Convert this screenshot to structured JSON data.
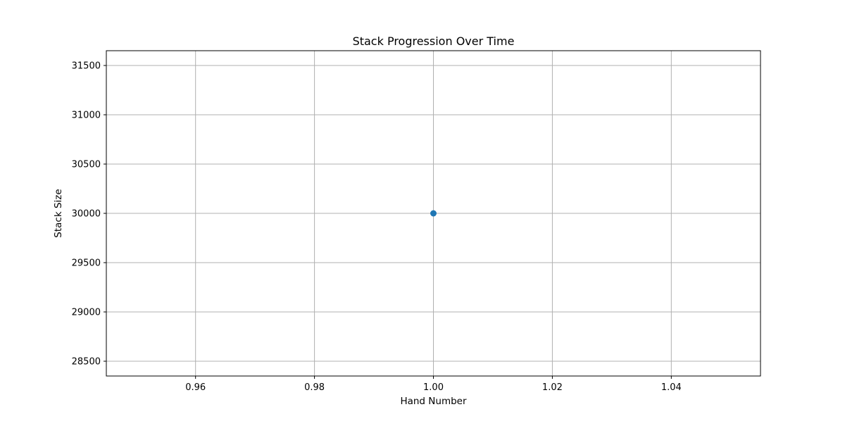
{
  "chart_data": {
    "type": "line",
    "title": "Stack Progression Over Time",
    "xlabel": "Hand Number",
    "ylabel": "Stack Size",
    "x": [
      1.0
    ],
    "series": [
      {
        "name": "Stack Size",
        "values": [
          30000
        ],
        "color": "#1f77b4",
        "marker": "circle"
      }
    ],
    "xlim": [
      0.945,
      1.055
    ],
    "ylim": [
      28350,
      31650
    ],
    "xticks": [
      0.96,
      0.98,
      1.0,
      1.02,
      1.04
    ],
    "xtick_labels": [
      "0.96",
      "0.98",
      "1.00",
      "1.02",
      "1.04"
    ],
    "yticks": [
      28500,
      29000,
      29500,
      30000,
      30500,
      31000,
      31500
    ],
    "ytick_labels": [
      "28500",
      "29000",
      "29500",
      "30000",
      "30500",
      "31000",
      "31500"
    ],
    "grid": true,
    "legend": "none"
  }
}
